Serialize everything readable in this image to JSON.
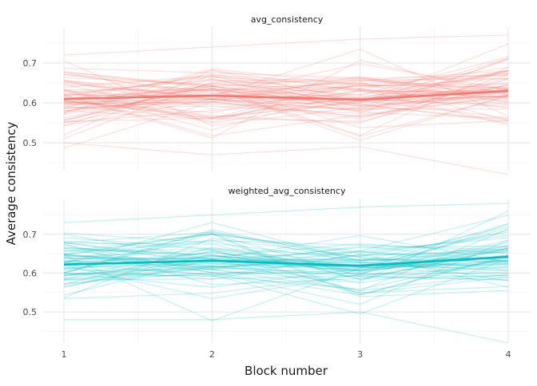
{
  "chart_data": {
    "type": "line",
    "xlabel": "Block number",
    "ylabel": "Average consistency",
    "x_ticks": [
      1,
      2,
      3,
      4
    ],
    "panels": [
      {
        "title": "avg_consistency",
        "color": "#F8766D",
        "ylim": [
          0.43,
          0.79
        ],
        "y_ticks": [
          0.5,
          0.6,
          0.7
        ],
        "mean_series": {
          "x": [
            1,
            2,
            3,
            4
          ],
          "values": [
            0.61,
            0.618,
            0.608,
            0.63
          ]
        },
        "individual_lines": {
          "count": 70,
          "range_hint": [
            0.42,
            0.77
          ],
          "samples": [
            [
              0.5,
              0.47,
              0.49,
              0.42
            ],
            [
              0.72,
              0.74,
              0.76,
              0.77
            ],
            [
              0.63,
              0.61,
              0.66,
              0.62
            ]
          ]
        }
      },
      {
        "title": "weighted_avg_consistency",
        "color": "#00BFC4",
        "ylim": [
          0.42,
          0.79
        ],
        "y_ticks": [
          0.5,
          0.6,
          0.7
        ],
        "mean_series": {
          "x": [
            1,
            2,
            3,
            4
          ],
          "values": [
            0.622,
            0.632,
            0.619,
            0.642
          ]
        },
        "individual_lines": {
          "count": 70,
          "range_hint": [
            0.42,
            0.78
          ],
          "samples": [
            [
              0.48,
              0.48,
              0.5,
              0.42
            ],
            [
              0.73,
              0.75,
              0.77,
              0.78
            ],
            [
              0.64,
              0.62,
              0.67,
              0.63
            ]
          ]
        }
      }
    ],
    "grid": true,
    "legend": "none"
  }
}
